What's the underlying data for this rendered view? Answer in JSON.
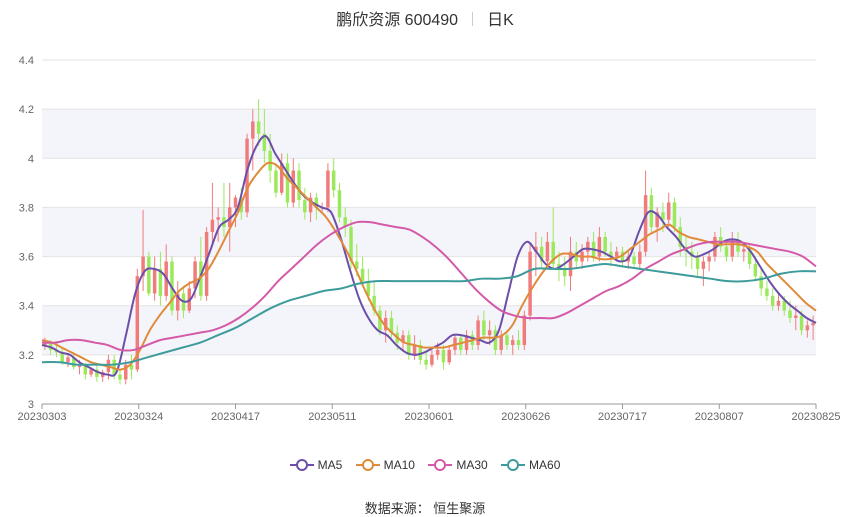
{
  "title": {
    "name": "鹏欣资源 600490",
    "period": "日K"
  },
  "source_label": "数据来源：  恒生聚源",
  "colors": {
    "up": "#f07b7b",
    "down": "#9be85b",
    "ma5": "#6b4fa8",
    "ma10": "#e08a3a",
    "ma30": "#d45aa8",
    "ma60": "#3e9b9b"
  },
  "chart_data": {
    "type": "candlestick",
    "x_tick_labels": [
      "20230303",
      "20230324",
      "20230417",
      "20230511",
      "20230601",
      "20230626",
      "20230717",
      "20230807",
      "20230825"
    ],
    "y_tick_labels": [
      "3",
      "3.2",
      "3.4",
      "3.6",
      "3.8",
      "4",
      "4.2",
      "4.4"
    ],
    "ylim": [
      3,
      4.4
    ],
    "grid": "horizontal",
    "legend": {
      "position": "bottom",
      "entries": [
        "MA5",
        "MA10",
        "MA30",
        "MA60"
      ]
    },
    "ohlc": [
      [
        3.24,
        3.27,
        3.22,
        3.25
      ],
      [
        3.25,
        3.26,
        3.2,
        3.22
      ],
      [
        3.22,
        3.25,
        3.19,
        3.21
      ],
      [
        3.21,
        3.23,
        3.16,
        3.17
      ],
      [
        3.17,
        3.2,
        3.15,
        3.19
      ],
      [
        3.19,
        3.21,
        3.14,
        3.15
      ],
      [
        3.15,
        3.18,
        3.12,
        3.16
      ],
      [
        3.16,
        3.17,
        3.1,
        3.12
      ],
      [
        3.12,
        3.15,
        3.11,
        3.14
      ],
      [
        3.14,
        3.16,
        3.09,
        3.11
      ],
      [
        3.11,
        3.14,
        3.09,
        3.13
      ],
      [
        3.13,
        3.2,
        3.1,
        3.18
      ],
      [
        3.18,
        3.2,
        3.1,
        3.12
      ],
      [
        3.12,
        3.14,
        3.08,
        3.1
      ],
      [
        3.1,
        3.18,
        3.08,
        3.16
      ],
      [
        3.16,
        3.2,
        3.1,
        3.14
      ],
      [
        3.14,
        3.55,
        3.13,
        3.52
      ],
      [
        3.52,
        3.79,
        3.46,
        3.6
      ],
      [
        3.6,
        3.62,
        3.44,
        3.45
      ],
      [
        3.45,
        3.6,
        3.42,
        3.55
      ],
      [
        3.55,
        3.62,
        3.4,
        3.44
      ],
      [
        3.44,
        3.65,
        3.42,
        3.58
      ],
      [
        3.58,
        3.6,
        3.36,
        3.38
      ],
      [
        3.38,
        3.5,
        3.34,
        3.45
      ],
      [
        3.45,
        3.48,
        3.35,
        3.38
      ],
      [
        3.38,
        3.5,
        3.37,
        3.47
      ],
      [
        3.47,
        3.6,
        3.43,
        3.58
      ],
      [
        3.58,
        3.68,
        3.42,
        3.44
      ],
      [
        3.44,
        3.72,
        3.42,
        3.7
      ],
      [
        3.7,
        3.9,
        3.65,
        3.75
      ],
      [
        3.75,
        3.8,
        3.66,
        3.76
      ],
      [
        3.76,
        3.9,
        3.68,
        3.72
      ],
      [
        3.72,
        3.9,
        3.62,
        3.8
      ],
      [
        3.8,
        3.85,
        3.72,
        3.84
      ],
      [
        3.84,
        3.88,
        3.75,
        3.78
      ],
      [
        3.78,
        4.1,
        3.76,
        4.08
      ],
      [
        4.08,
        4.2,
        3.95,
        4.15
      ],
      [
        4.15,
        4.24,
        4.05,
        4.1
      ],
      [
        4.1,
        4.2,
        3.98,
        4.03
      ],
      [
        4.03,
        4.1,
        3.9,
        3.95
      ],
      [
        3.95,
        3.98,
        3.84,
        3.86
      ],
      [
        3.86,
        4.02,
        3.85,
        3.98
      ],
      [
        3.98,
        4.02,
        3.8,
        3.82
      ],
      [
        3.82,
        4.0,
        3.8,
        3.95
      ],
      [
        3.95,
        3.98,
        3.8,
        3.83
      ],
      [
        3.83,
        3.88,
        3.75,
        3.78
      ],
      [
        3.78,
        3.86,
        3.74,
        3.84
      ],
      [
        3.84,
        3.86,
        3.75,
        3.8
      ],
      [
        3.8,
        3.82,
        3.78,
        3.8
      ],
      [
        3.8,
        3.98,
        3.78,
        3.95
      ],
      [
        3.95,
        4.0,
        3.84,
        3.87
      ],
      [
        3.87,
        3.9,
        3.74,
        3.76
      ],
      [
        3.76,
        3.8,
        3.68,
        3.72
      ],
      [
        3.72,
        3.75,
        3.55,
        3.58
      ],
      [
        3.58,
        3.65,
        3.52,
        3.55
      ],
      [
        3.55,
        3.6,
        3.48,
        3.5
      ],
      [
        3.5,
        3.55,
        3.42,
        3.44
      ],
      [
        3.44,
        3.5,
        3.36,
        3.38
      ],
      [
        3.38,
        3.4,
        3.28,
        3.3
      ],
      [
        3.3,
        3.38,
        3.25,
        3.35
      ],
      [
        3.35,
        3.38,
        3.27,
        3.29
      ],
      [
        3.29,
        3.32,
        3.22,
        3.25
      ],
      [
        3.25,
        3.3,
        3.22,
        3.28
      ],
      [
        3.28,
        3.3,
        3.18,
        3.2
      ],
      [
        3.2,
        3.28,
        3.18,
        3.24
      ],
      [
        3.24,
        3.26,
        3.16,
        3.18
      ],
      [
        3.18,
        3.22,
        3.14,
        3.16
      ],
      [
        3.16,
        3.22,
        3.15,
        3.2
      ],
      [
        3.2,
        3.25,
        3.18,
        3.22
      ],
      [
        3.22,
        3.24,
        3.14,
        3.17
      ],
      [
        3.17,
        3.24,
        3.16,
        3.22
      ],
      [
        3.22,
        3.28,
        3.2,
        3.27
      ],
      [
        3.27,
        3.28,
        3.2,
        3.22
      ],
      [
        3.22,
        3.3,
        3.2,
        3.28
      ],
      [
        3.28,
        3.3,
        3.22,
        3.24
      ],
      [
        3.24,
        3.36,
        3.22,
        3.34
      ],
      [
        3.34,
        3.38,
        3.26,
        3.28
      ],
      [
        3.28,
        3.34,
        3.24,
        3.3
      ],
      [
        3.3,
        3.32,
        3.2,
        3.22
      ],
      [
        3.22,
        3.3,
        3.2,
        3.28
      ],
      [
        3.28,
        3.3,
        3.22,
        3.24
      ],
      [
        3.24,
        3.28,
        3.2,
        3.26
      ],
      [
        3.26,
        3.3,
        3.22,
        3.24
      ],
      [
        3.24,
        3.38,
        3.22,
        3.36
      ],
      [
        3.36,
        3.65,
        3.34,
        3.62
      ],
      [
        3.62,
        3.7,
        3.52,
        3.64
      ],
      [
        3.64,
        3.68,
        3.55,
        3.58
      ],
      [
        3.58,
        3.7,
        3.56,
        3.66
      ],
      [
        3.66,
        3.8,
        3.55,
        3.57
      ],
      [
        3.57,
        3.62,
        3.5,
        3.55
      ],
      [
        3.55,
        3.6,
        3.48,
        3.52
      ],
      [
        3.52,
        3.68,
        3.46,
        3.62
      ],
      [
        3.62,
        3.66,
        3.55,
        3.58
      ],
      [
        3.58,
        3.65,
        3.55,
        3.62
      ],
      [
        3.62,
        3.68,
        3.58,
        3.66
      ],
      [
        3.66,
        3.7,
        3.58,
        3.6
      ],
      [
        3.6,
        3.72,
        3.58,
        3.68
      ],
      [
        3.68,
        3.7,
        3.6,
        3.62
      ],
      [
        3.62,
        3.66,
        3.56,
        3.6
      ],
      [
        3.6,
        3.64,
        3.58,
        3.62
      ],
      [
        3.62,
        3.64,
        3.56,
        3.58
      ],
      [
        3.58,
        3.62,
        3.55,
        3.6
      ],
      [
        3.6,
        3.62,
        3.56,
        3.57
      ],
      [
        3.57,
        3.65,
        3.55,
        3.62
      ],
      [
        3.62,
        3.95,
        3.6,
        3.85
      ],
      [
        3.85,
        3.88,
        3.7,
        3.72
      ],
      [
        3.72,
        3.8,
        3.66,
        3.78
      ],
      [
        3.78,
        3.82,
        3.7,
        3.75
      ],
      [
        3.75,
        3.86,
        3.72,
        3.82
      ],
      [
        3.82,
        3.84,
        3.7,
        3.72
      ],
      [
        3.72,
        3.76,
        3.6,
        3.64
      ],
      [
        3.64,
        3.68,
        3.56,
        3.62
      ],
      [
        3.62,
        3.66,
        3.55,
        3.6
      ],
      [
        3.6,
        3.62,
        3.52,
        3.55
      ],
      [
        3.55,
        3.6,
        3.48,
        3.58
      ],
      [
        3.58,
        3.62,
        3.54,
        3.6
      ],
      [
        3.6,
        3.7,
        3.58,
        3.68
      ],
      [
        3.68,
        3.72,
        3.62,
        3.64
      ],
      [
        3.64,
        3.66,
        3.58,
        3.6
      ],
      [
        3.6,
        3.7,
        3.58,
        3.66
      ],
      [
        3.66,
        3.7,
        3.6,
        3.62
      ],
      [
        3.62,
        3.66,
        3.58,
        3.63
      ],
      [
        3.63,
        3.65,
        3.55,
        3.57
      ],
      [
        3.57,
        3.6,
        3.5,
        3.52
      ],
      [
        3.52,
        3.55,
        3.44,
        3.47
      ],
      [
        3.47,
        3.5,
        3.42,
        3.44
      ],
      [
        3.44,
        3.47,
        3.38,
        3.4
      ],
      [
        3.4,
        3.45,
        3.38,
        3.42
      ],
      [
        3.42,
        3.44,
        3.36,
        3.38
      ],
      [
        3.38,
        3.42,
        3.33,
        3.35
      ],
      [
        3.35,
        3.4,
        3.3,
        3.36
      ],
      [
        3.36,
        3.38,
        3.28,
        3.3
      ],
      [
        3.3,
        3.34,
        3.27,
        3.32
      ],
      [
        3.32,
        3.36,
        3.26,
        3.33
      ]
    ],
    "series": [
      {
        "name": "MA5",
        "values": [
          3.24,
          3.23,
          3.21,
          3.2,
          3.17,
          3.15,
          3.13,
          3.12,
          3.13,
          3.28,
          3.45,
          3.54,
          3.55,
          3.53,
          3.47,
          3.42,
          3.43,
          3.52,
          3.62,
          3.72,
          3.75,
          3.8,
          3.95,
          4.05,
          4.09,
          4.02,
          3.96,
          3.9,
          3.85,
          3.82,
          3.8,
          3.78,
          3.68,
          3.55,
          3.43,
          3.35,
          3.3,
          3.28,
          3.24,
          3.21,
          3.2,
          3.21,
          3.23,
          3.25,
          3.28,
          3.28,
          3.27,
          3.26,
          3.25,
          3.3,
          3.45,
          3.6,
          3.66,
          3.62,
          3.57,
          3.55,
          3.57,
          3.6,
          3.63,
          3.63,
          3.62,
          3.6,
          3.58,
          3.6,
          3.7,
          3.78,
          3.77,
          3.72,
          3.68,
          3.63,
          3.6,
          3.61,
          3.63,
          3.66,
          3.67,
          3.66,
          3.62,
          3.56,
          3.5,
          3.45,
          3.41,
          3.38,
          3.35,
          3.33
        ]
      },
      {
        "name": "MA10",
        "values": [
          3.26,
          3.25,
          3.23,
          3.21,
          3.19,
          3.17,
          3.16,
          3.15,
          3.14,
          3.16,
          3.22,
          3.3,
          3.36,
          3.41,
          3.46,
          3.49,
          3.51,
          3.55,
          3.62,
          3.7,
          3.78,
          3.88,
          3.94,
          3.98,
          3.97,
          3.92,
          3.88,
          3.84,
          3.8,
          3.76,
          3.7,
          3.63,
          3.55,
          3.46,
          3.38,
          3.32,
          3.28,
          3.25,
          3.24,
          3.23,
          3.23,
          3.23,
          3.24,
          3.25,
          3.26,
          3.27,
          3.27,
          3.28,
          3.32,
          3.4,
          3.47,
          3.53,
          3.58,
          3.61,
          3.61,
          3.6,
          3.6,
          3.59,
          3.59,
          3.6,
          3.63,
          3.66,
          3.69,
          3.71,
          3.73,
          3.7,
          3.68,
          3.67,
          3.66,
          3.65,
          3.65,
          3.65,
          3.64,
          3.62,
          3.57,
          3.53,
          3.49,
          3.45,
          3.41,
          3.38
        ]
      },
      {
        "name": "MA30",
        "values": [
          3.25,
          3.25,
          3.26,
          3.26,
          3.25,
          3.24,
          3.22,
          3.22,
          3.24,
          3.26,
          3.27,
          3.28,
          3.29,
          3.3,
          3.32,
          3.35,
          3.39,
          3.44,
          3.5,
          3.55,
          3.6,
          3.65,
          3.69,
          3.72,
          3.74,
          3.74,
          3.73,
          3.72,
          3.71,
          3.68,
          3.64,
          3.59,
          3.53,
          3.47,
          3.42,
          3.38,
          3.36,
          3.35,
          3.35,
          3.35,
          3.37,
          3.4,
          3.43,
          3.46,
          3.48,
          3.51,
          3.55,
          3.58,
          3.61,
          3.63,
          3.65,
          3.66,
          3.66,
          3.66,
          3.65,
          3.64,
          3.63,
          3.62,
          3.6,
          3.56
        ]
      },
      {
        "name": "MA60",
        "values": [
          3.17,
          3.17,
          3.16,
          3.16,
          3.16,
          3.17,
          3.19,
          3.21,
          3.23,
          3.25,
          3.28,
          3.31,
          3.35,
          3.39,
          3.42,
          3.44,
          3.46,
          3.47,
          3.49,
          3.5,
          3.5,
          3.5,
          3.5,
          3.5,
          3.5,
          3.51,
          3.51,
          3.52,
          3.55,
          3.55,
          3.55,
          3.56,
          3.57,
          3.56,
          3.55,
          3.54,
          3.53,
          3.52,
          3.51,
          3.5,
          3.5,
          3.51,
          3.53,
          3.54,
          3.54
        ]
      }
    ]
  }
}
